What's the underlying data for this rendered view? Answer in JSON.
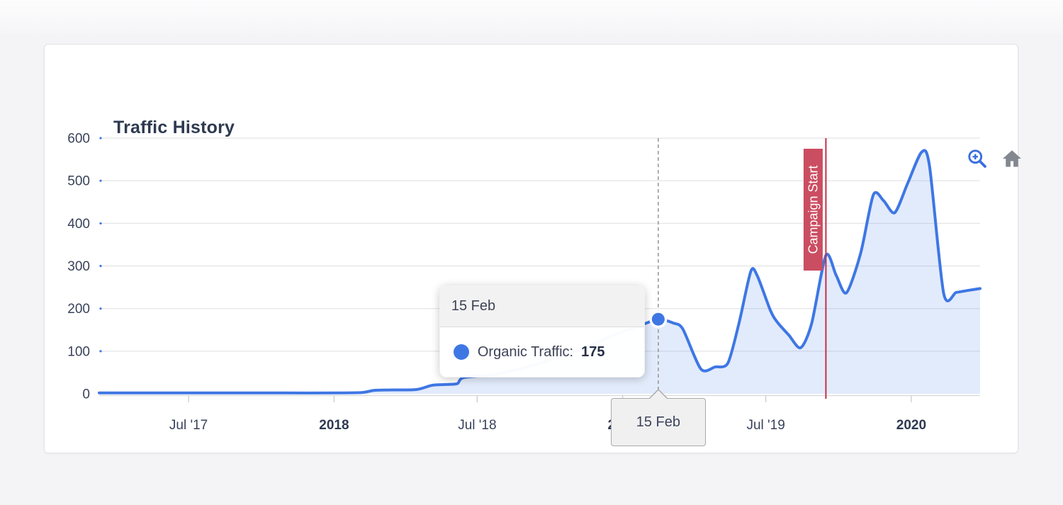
{
  "card": {
    "title": "Traffic History"
  },
  "toolbar": {
    "zoom_in_icon": "zoom-in",
    "home_icon": "reset-home",
    "zoom_icon_color": "#3b6ee0",
    "home_icon_color": "#83878f"
  },
  "tooltip": {
    "header": "15 Feb",
    "series_label": "Organic Traffic:",
    "value": "175",
    "dot_color": "#3e77e4"
  },
  "axis_tooltip": {
    "label": "15 Feb"
  },
  "chart_data": {
    "type": "area",
    "title": "Traffic History",
    "xlabel": "",
    "ylabel": "",
    "ylim": [
      0,
      600
    ],
    "y_ticks": [
      0,
      100,
      200,
      300,
      400,
      500,
      600
    ],
    "grid": true,
    "legend": "none",
    "x_domain": [
      "2017-03-10",
      "2020-03-28"
    ],
    "x_ticks": [
      {
        "label": "Jul '17",
        "date": "2017-07-01",
        "bold": false
      },
      {
        "label": "2018",
        "date": "2018-01-01",
        "bold": true
      },
      {
        "label": "Jul '18",
        "date": "2018-07-01",
        "bold": false
      },
      {
        "label": "2019",
        "date": "2019-01-01",
        "bold": true
      },
      {
        "label": "Jul '19",
        "date": "2019-07-01",
        "bold": false
      },
      {
        "label": "2020",
        "date": "2020-01-01",
        "bold": true
      }
    ],
    "series": [
      {
        "name": "Organic Traffic",
        "color": "#3e77e4",
        "fill": "rgba(62,119,228,0.15)",
        "points": [
          [
            "2017-03-10",
            2
          ],
          [
            "2017-05-01",
            2
          ],
          [
            "2017-07-01",
            2
          ],
          [
            "2017-09-01",
            2
          ],
          [
            "2017-11-01",
            2
          ],
          [
            "2018-01-01",
            2
          ],
          [
            "2018-02-05",
            3
          ],
          [
            "2018-02-20",
            8
          ],
          [
            "2018-03-10",
            9
          ],
          [
            "2018-04-15",
            10
          ],
          [
            "2018-05-05",
            20
          ],
          [
            "2018-05-25",
            22
          ],
          [
            "2018-06-06",
            24
          ],
          [
            "2018-06-14",
            38
          ],
          [
            "2018-07-25",
            46
          ],
          [
            "2018-09-15",
            70
          ],
          [
            "2018-11-10",
            105
          ],
          [
            "2018-12-24",
            140
          ],
          [
            "2019-01-20",
            158
          ],
          [
            "2019-02-15",
            175
          ],
          [
            "2019-03-06",
            166
          ],
          [
            "2019-03-18",
            152
          ],
          [
            "2019-04-10",
            58
          ],
          [
            "2019-04-28",
            63
          ],
          [
            "2019-05-14",
            72
          ],
          [
            "2019-05-28",
            165
          ],
          [
            "2019-06-12",
            287
          ],
          [
            "2019-06-20",
            278
          ],
          [
            "2019-07-07",
            195
          ],
          [
            "2019-07-16",
            167
          ],
          [
            "2019-07-30",
            138
          ],
          [
            "2019-08-14",
            108
          ],
          [
            "2019-08-28",
            165
          ],
          [
            "2019-09-15",
            325
          ],
          [
            "2019-09-28",
            278
          ],
          [
            "2019-10-11",
            237
          ],
          [
            "2019-10-29",
            330
          ],
          [
            "2019-11-14",
            467
          ],
          [
            "2019-11-27",
            453
          ],
          [
            "2019-12-11",
            425
          ],
          [
            "2019-12-27",
            492
          ],
          [
            "2020-01-14",
            567
          ],
          [
            "2020-01-24",
            535
          ],
          [
            "2020-02-11",
            235
          ],
          [
            "2020-02-27",
            238
          ],
          [
            "2020-03-14",
            243
          ],
          [
            "2020-03-28",
            247
          ]
        ]
      }
    ],
    "annotation": {
      "label": "Campaign Start",
      "date": "2019-09-15",
      "line_color": "#c22f46",
      "label_bg": "#cb4d61",
      "label_text_color": "#ffffff"
    },
    "hover": {
      "date": "2019-02-15",
      "date_label": "15 Feb",
      "value": 175,
      "dashed_line_color": "#9b9b9b"
    },
    "colors": {
      "gridline": "#e3e3e5",
      "axis_line": "#d8d8da",
      "tick": "#c8c8c8",
      "label_text": "#39425a"
    }
  }
}
